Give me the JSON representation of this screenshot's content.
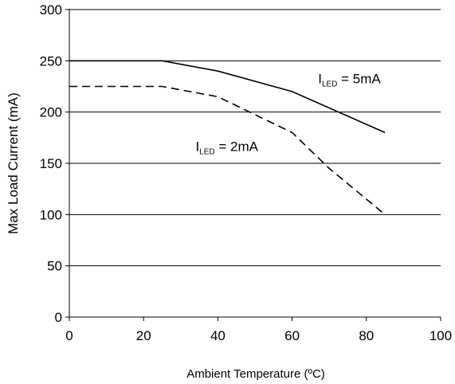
{
  "chart_data": {
    "type": "line",
    "xlabel": "Ambient Temperature (ºC)",
    "ylabel": "Max Load Current (mA)",
    "xlim": [
      0,
      100
    ],
    "ylim": [
      0,
      300
    ],
    "x_ticks": [
      0,
      20,
      40,
      60,
      80,
      100
    ],
    "y_ticks": [
      0,
      50,
      100,
      150,
      200,
      250,
      300
    ],
    "grid": "horizontal",
    "series": [
      {
        "style": "solid",
        "color": "#000000",
        "x": [
          0,
          25,
          40,
          60,
          85
        ],
        "y": [
          250,
          250,
          240,
          220,
          180
        ]
      },
      {
        "style": "dashed",
        "color": "#000000",
        "x": [
          0,
          25,
          40,
          60,
          70,
          85
        ],
        "y": [
          225,
          225,
          215,
          180,
          145,
          100
        ]
      }
    ],
    "annotations": [
      {
        "series_index": 0,
        "parts": [
          {
            "text": "I",
            "style": "normal"
          },
          {
            "text": "LED",
            "style": "subscript"
          },
          {
            "text": " = 5mA",
            "style": "normal"
          }
        ],
        "x": 67,
        "y": 228
      },
      {
        "series_index": 1,
        "parts": [
          {
            "text": "I",
            "style": "normal"
          },
          {
            "text": "LED",
            "style": "subscript"
          },
          {
            "text": " = 2mA",
            "style": "normal"
          }
        ],
        "x": 34,
        "y": 162
      }
    ]
  }
}
